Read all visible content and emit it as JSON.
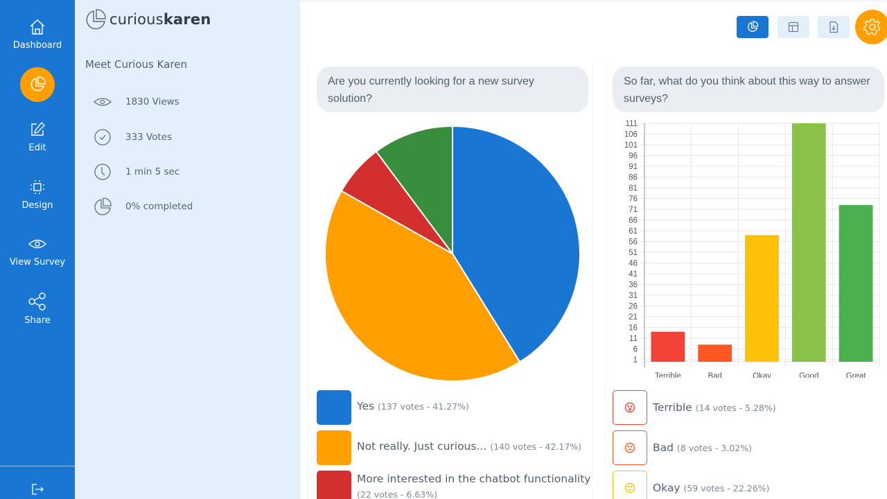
{
  "nav": {
    "items": [
      {
        "label": "Dashboard",
        "icon": "home-icon"
      },
      {
        "label": "",
        "icon": "pie-chart-icon",
        "active": true
      },
      {
        "label": "Edit",
        "icon": "edit-icon"
      },
      {
        "label": "Design",
        "icon": "design-icon"
      },
      {
        "label": "View Survey",
        "icon": "eye-icon"
      },
      {
        "label": "Share",
        "icon": "share-icon"
      }
    ],
    "logout_icon": "logout-icon",
    "colors": {
      "bg": "#1976d2",
      "active": "#ff9f00"
    }
  },
  "brand": {
    "light": "curious",
    "bold": "karen"
  },
  "survey": {
    "title": "Meet Curious Karen",
    "stats": [
      {
        "icon": "eye-icon",
        "text": "1830 Views"
      },
      {
        "icon": "check-circle-icon",
        "text": "333 Votes"
      },
      {
        "icon": "clock-icon",
        "text": "1 min 5 sec"
      },
      {
        "icon": "pie-chart-icon",
        "text": "0% completed"
      }
    ]
  },
  "toolbar": {
    "buttons": [
      {
        "icon": "pie-chart-icon",
        "active": true
      },
      {
        "icon": "table-icon",
        "active": false
      },
      {
        "icon": "download-file-icon",
        "active": false
      }
    ],
    "settings_icon": "gear-icon"
  },
  "questions": [
    {
      "text": "Are you currently looking for a new survey solution?",
      "answers": [
        {
          "label": "Yes",
          "meta": "(137 votes - 41.27%)",
          "color": "#1976d2"
        },
        {
          "label": "Not really. Just curious...",
          "meta": "(140 votes - 42.17%)",
          "color": "#ffa000"
        },
        {
          "label": "More interested in the chatbot functionality",
          "meta": "(22 votes - 6.63%)",
          "color": "#d32f2f"
        }
      ]
    },
    {
      "text": "So far, what do you think about this way to answer surveys?",
      "answers": [
        {
          "label": "Terrible",
          "meta": "(14 votes - 5.28%)",
          "color": "#f44336",
          "icon": "astonished-face-icon"
        },
        {
          "label": "Bad",
          "meta": "(8 votes - 3.02%)",
          "color": "#ff5722",
          "icon": "sad-face-icon"
        },
        {
          "label": "Okay",
          "meta": "(59 votes - 22.26%)",
          "color": "#ffc107",
          "icon": "neutral-face-icon"
        }
      ]
    }
  ],
  "chart_data": [
    {
      "type": "pie",
      "title": "Are you currently looking for a new survey solution?",
      "values": [
        137,
        140,
        22,
        34
      ],
      "colors": [
        "#1976d2",
        "#ffa000",
        "#d32f2f",
        "#388e3c"
      ],
      "start": "top",
      "direction": "clockwise"
    },
    {
      "type": "bar",
      "title": "So far, what do you think about this way to answer surveys?",
      "categories": [
        "Terrible",
        "Bad",
        "Okay",
        "Good",
        "Great"
      ],
      "values": [
        14,
        8,
        59,
        111,
        73
      ],
      "colors": [
        "#f44336",
        "#ff5722",
        "#ffc107",
        "#8bc34a",
        "#4caf50"
      ],
      "yticks": [
        1,
        6,
        11,
        16,
        21,
        26,
        31,
        36,
        41,
        46,
        51,
        56,
        61,
        66,
        71,
        76,
        81,
        86,
        91,
        96,
        101,
        106,
        111
      ],
      "ylim": [
        0,
        111
      ],
      "grid": true
    }
  ]
}
